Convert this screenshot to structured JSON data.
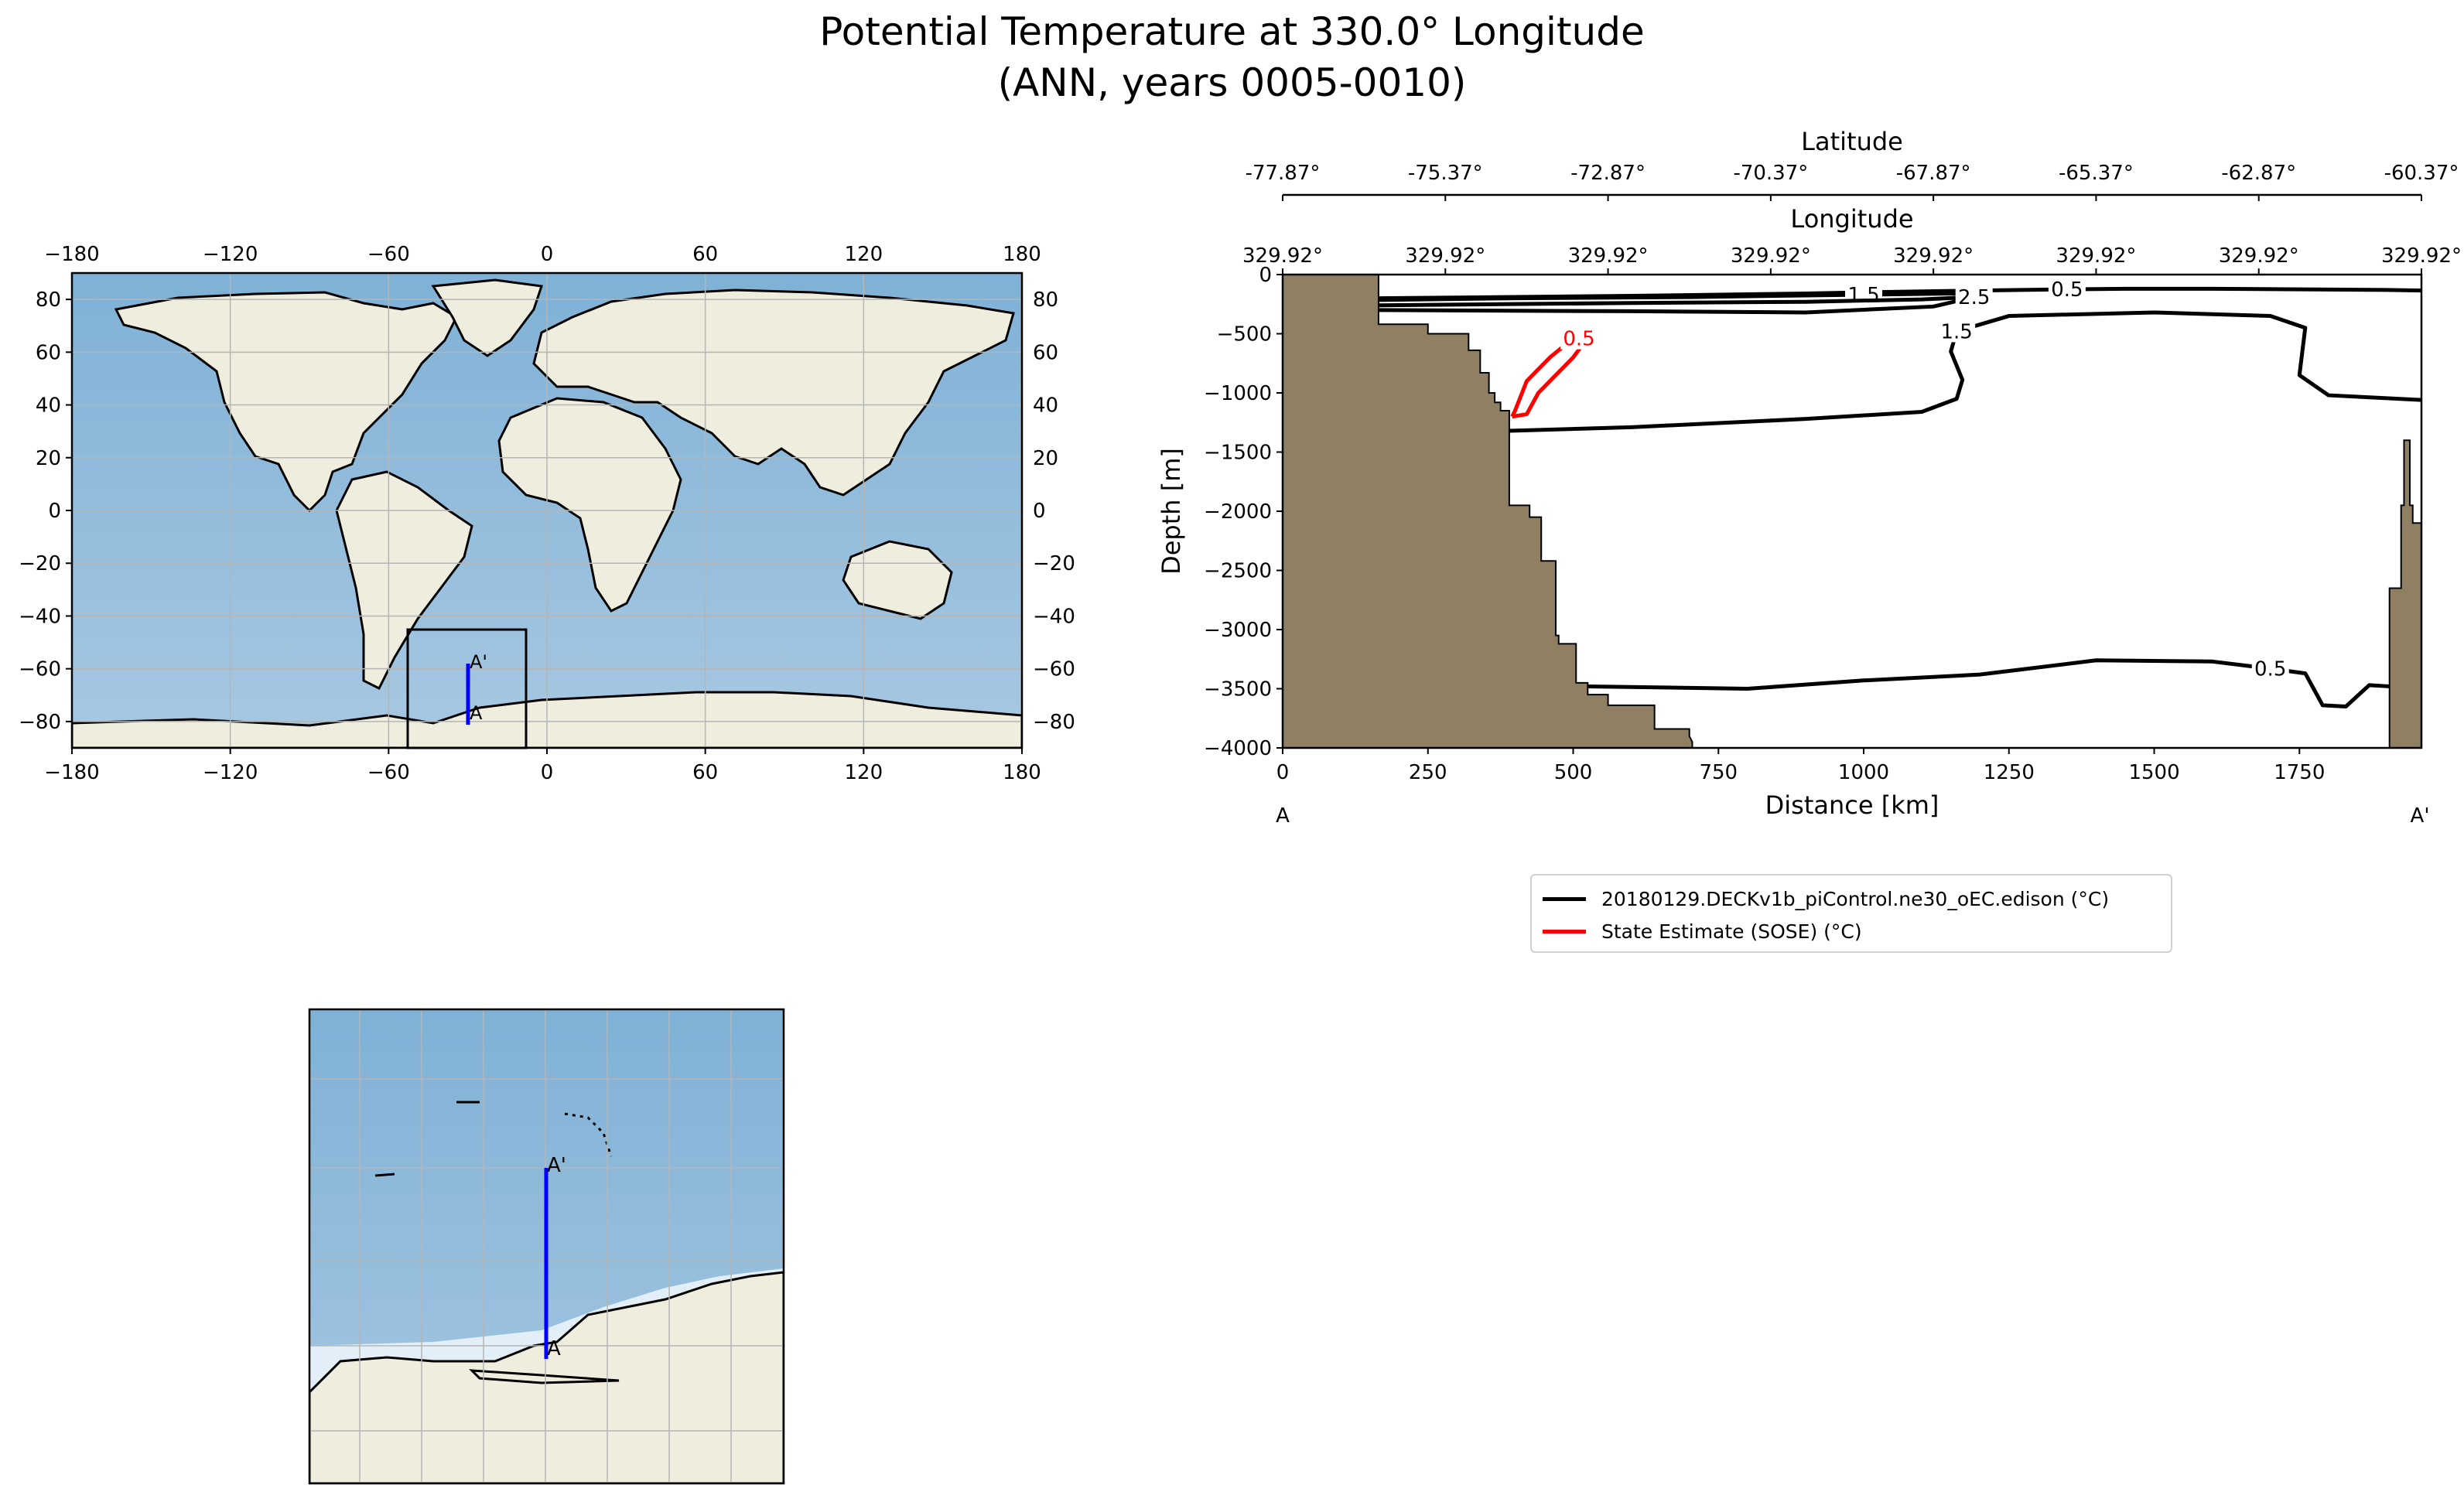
{
  "figure": {
    "title_line1": "Potential Temperature at 330.0° Longitude",
    "title_line2": "(ANN, years 0005-0010)"
  },
  "colors": {
    "ocean": "#8fb8d8",
    "land": "#efedde",
    "bathymetry": "#8f8064",
    "model_contour": "#000000",
    "obs_contour": "#ff0000",
    "transect": "#0000ff",
    "grid": "#b5b5b5"
  },
  "map": {
    "x_ticks": [
      "−180",
      "−120",
      "−60",
      "0",
      "60",
      "120",
      "180"
    ],
    "y_ticks": [
      "−80",
      "−60",
      "−40",
      "−20",
      "0",
      "20",
      "40",
      "60",
      "80"
    ],
    "top_ticks": [
      "−180",
      "−120",
      "−60",
      "0",
      "60",
      "120",
      "180"
    ],
    "right_ticks": [
      "−80",
      "−60",
      "−40",
      "−20",
      "0",
      "20",
      "40",
      "60",
      "80"
    ],
    "start_label": "A",
    "end_label": "A'"
  },
  "inset": {
    "start_label": "A",
    "end_label": "A'"
  },
  "section": {
    "xlabel": "Distance [km]",
    "ylabel": "Depth [m]",
    "top_axis_label": "Longitude",
    "top2_axis_label": "Latitude",
    "start_label": "A",
    "end_label": "A'"
  },
  "chart_data": [
    {
      "type": "map",
      "name": "global-locator-map",
      "xlim": [
        -180,
        180
      ],
      "ylim": [
        -90,
        90
      ],
      "xticks": [
        -180,
        -120,
        -60,
        0,
        60,
        120,
        180
      ],
      "yticks": [
        -80,
        -60,
        -40,
        -20,
        0,
        20,
        40,
        60,
        80
      ],
      "inset_box_lon": [
        -55,
        -10
      ],
      "inset_box_lat": [
        -90,
        -45
      ],
      "transect": {
        "lon": [
          -30,
          -30
        ],
        "lat": [
          -77.87,
          -60.37
        ]
      }
    },
    {
      "type": "line",
      "name": "potential-temperature-section",
      "xlim": [
        0,
        1960
      ],
      "ylim": [
        -4000,
        0
      ],
      "xticks": [
        0,
        250,
        500,
        750,
        1000,
        1250,
        1500,
        1750
      ],
      "yticks": [
        0,
        -500,
        -1000,
        -1500,
        -2000,
        -2500,
        -3000,
        -3500,
        -4000
      ],
      "tick_labels_x": [
        "0",
        "250",
        "500",
        "750",
        "1000",
        "1250",
        "1500",
        "1750"
      ],
      "tick_labels_y": [
        "0",
        "−500",
        "−1000",
        "−1500",
        "−2000",
        "−2500",
        "−3000",
        "−3500",
        "−4000"
      ],
      "longitude_tick_labels": [
        "329.92°",
        "329.92°",
        "329.92°",
        "329.92°",
        "329.92°",
        "329.92°",
        "329.92°",
        "329.92°"
      ],
      "latitude_tick_labels": [
        "-77.87°",
        "-75.37°",
        "-72.87°",
        "-70.37°",
        "-67.87°",
        "-65.37°",
        "-62.87°",
        "-60.37°"
      ],
      "bathymetry": {
        "x": [
          0,
          165,
          165,
          250,
          250,
          320,
          320,
          340,
          340,
          355,
          355,
          365,
          365,
          375,
          375,
          390,
          390,
          425,
          425,
          445,
          445,
          470,
          470,
          475,
          475,
          505,
          505,
          525,
          525,
          560,
          560,
          640,
          640,
          700,
          700,
          705
        ],
        "y": [
          0,
          0,
          -420,
          -420,
          -500,
          -500,
          -640,
          -640,
          -830,
          -830,
          -1000,
          -1000,
          -1080,
          -1080,
          -1150,
          -1150,
          -1950,
          -1950,
          -2050,
          -2050,
          -2420,
          -2420,
          -3050,
          -3050,
          -3120,
          -3120,
          -3450,
          -3450,
          -3550,
          -3550,
          -3640,
          -3640,
          -3840,
          -3840,
          -3900,
          -3950
        ],
        "right_x": [
          1905,
          1905,
          1925,
          1925,
          1930,
          1930,
          1940,
          1940,
          1945,
          1945,
          1960
        ],
        "right_y": [
          -4000,
          -2650,
          -2650,
          -1950,
          -1950,
          -1400,
          -1400,
          -1950,
          -1950,
          -2100,
          -2100
        ]
      },
      "series": [
        {
          "name": "20180129.DECKv1b_piControl.ne30_oEC.edison (°C)",
          "color": "#000000",
          "contours": [
            {
              "label": "0.5",
              "x": [
                165,
                600,
                900,
                1000,
                1200,
                1350,
                1450,
                1600,
                1900,
                1960
              ],
              "y": [
                -200,
                -180,
                -160,
                -150,
                -135,
                -125,
                -120,
                -120,
                -130,
                -135
              ]
            },
            {
              "label": "1.5",
              "x": [
                165,
                400,
                700,
                1000,
                1150,
                1200
              ],
              "y": [
                -215,
                -200,
                -190,
                -170,
                -160,
                -170
              ]
            },
            {
              "label": "2.5",
              "x": [
                165,
                600,
                900,
                1100,
                1190,
                1120,
                900,
                600,
                165
              ],
              "y": [
                -260,
                -240,
                -230,
                -210,
                -190,
                -270,
                -320,
                -310,
                -300
              ]
            },
            {
              "label": "1.5",
              "x": [
                390,
                600,
                900,
                1100,
                1160,
                1170,
                1150,
                1160,
                1250,
                1500,
                1700,
                1760,
                1750,
                1800,
                1960
              ],
              "y": [
                -1320,
                -1290,
                -1220,
                -1160,
                -1050,
                -890,
                -650,
                -480,
                -350,
                -320,
                -350,
                -450,
                -850,
                -1020,
                -1060
              ]
            },
            {
              "label": "0.5",
              "x": [
                525,
                800,
                1000,
                1200,
                1400,
                1600,
                1700,
                1760,
                1790,
                1830,
                1870,
                1905
              ],
              "y": [
                -3480,
                -3500,
                -3430,
                -3380,
                -3260,
                -3270,
                -3330,
                -3370,
                -3640,
                -3650,
                -3470,
                -3480
              ]
            }
          ]
        },
        {
          "name": "State Estimate (SOSE) (°C)",
          "color": "#ff0000",
          "contours": [
            {
              "label": "0.5",
              "x": [
                395,
                400,
                420,
                440,
                460,
                480,
                500,
                510,
                515,
                500,
                470,
                440,
                420,
                395
              ],
              "y": [
                -1200,
                -1150,
                -900,
                -800,
                -700,
                -620,
                -560,
                -540,
                -600,
                -700,
                -850,
                -1000,
                -1180,
                -1200
              ]
            }
          ]
        }
      ],
      "legend": [
        "20180129.DECKv1b_piControl.ne30_oEC.edison (°C)",
        "State Estimate (SOSE) (°C)"
      ]
    }
  ]
}
